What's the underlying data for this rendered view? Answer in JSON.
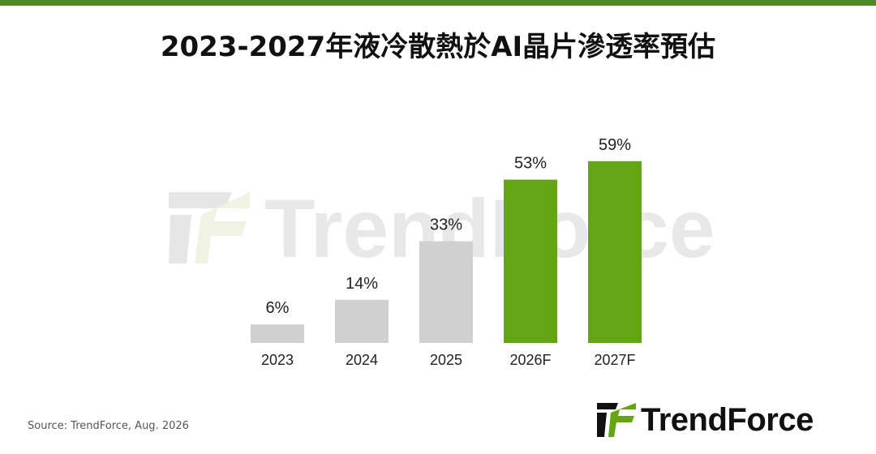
{
  "header": {
    "title": "2023-2027年液冷散熱於AI晶片滲透率預估"
  },
  "colors": {
    "accent_bar": "#4e8a22",
    "actual_bar": "#d0d0d0",
    "forecast_bar": "#63a512",
    "watermark_text": "#e8e8e8"
  },
  "watermark": {
    "text": "TrendForce"
  },
  "chart_data": {
    "type": "bar",
    "title": "2023-2027年液冷散熱於AI晶片滲透率預估",
    "xlabel": "",
    "ylabel": "",
    "unit": "%",
    "categories": [
      "2023",
      "2024",
      "2025",
      "2026F",
      "2027F"
    ],
    "values": [
      6,
      14,
      33,
      53,
      59
    ],
    "value_labels": [
      "6%",
      "14%",
      "33%",
      "53%",
      "59%"
    ],
    "forecast": [
      false,
      false,
      false,
      true,
      true
    ],
    "ylim": [
      0,
      60
    ],
    "grid": false,
    "legend": "none"
  },
  "footer": {
    "source": "Source: TrendForce, Aug. 2026",
    "logo_text": "TrendForce"
  }
}
